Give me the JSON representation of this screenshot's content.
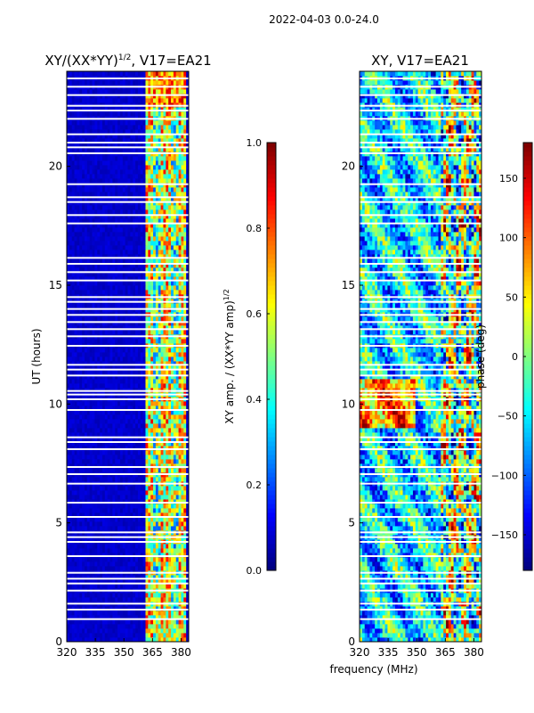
{
  "suptitle": "2022-04-03 0.0-24.0",
  "shared_xlabel": "frequency (MHz)",
  "chart_data": [
    {
      "type": "heatmap",
      "title": "XY/(XX*YY)",
      "title_sup": "1/2",
      "title_suffix": ", V17=EA21",
      "xlabel": "",
      "ylabel": "UT (hours)",
      "xlim": [
        320,
        384
      ],
      "ylim": [
        0,
        24
      ],
      "xticks": [
        320,
        335,
        350,
        365,
        380
      ],
      "yticks": [
        0,
        5,
        10,
        15,
        20
      ],
      "grid": false,
      "colormap": "jet",
      "colorbar": {
        "label": "XY amp. / (XX*YY amp)",
        "label_sup": "1/2",
        "range": [
          0.0,
          1.0
        ],
        "ticks": [
          "0.0",
          "0.2",
          "0.4",
          "0.6",
          "0.8",
          "1.0"
        ]
      },
      "background_value": 0.05,
      "bright_band_mhz": [
        361,
        383
      ],
      "gap_hours_utc": [
        0.95,
        1.35,
        1.6,
        2.15,
        2.45,
        2.65,
        2.9,
        3.6,
        4.2,
        4.4,
        4.6,
        5.25,
        5.85,
        6.65,
        7.05,
        7.35,
        8.1,
        8.4,
        8.6,
        9.75,
        10.2,
        10.4,
        10.55,
        11.2,
        11.45,
        11.65,
        12.45,
        12.85,
        13.15,
        13.45,
        13.75,
        14.0,
        14.3,
        14.5,
        15.2,
        15.55,
        15.9,
        16.15,
        17.6,
        17.95,
        18.5,
        18.7,
        19.25,
        20.55,
        20.8,
        21.0,
        21.35,
        22.0,
        22.35,
        22.55,
        23.0,
        23.35,
        23.7
      ]
    },
    {
      "type": "heatmap",
      "title": "XY, V17=EA21",
      "xlabel": "frequency (MHz)",
      "ylabel": "",
      "xlim": [
        320,
        384
      ],
      "ylim": [
        0,
        24
      ],
      "xticks": [
        320,
        335,
        350,
        365,
        380
      ],
      "yticks": [
        0,
        5,
        10,
        15,
        20
      ],
      "grid": false,
      "colormap": "jet",
      "colorbar": {
        "label": "phase (deg)",
        "range": [
          -180,
          180
        ],
        "ticks": [
          "−150",
          "−100",
          "−50",
          "0",
          "50",
          "100",
          "150"
        ],
        "tick_values": [
          -150,
          -100,
          -50,
          0,
          50,
          100,
          150
        ]
      },
      "gap_hours_utc": [
        0.95,
        1.35,
        1.6,
        2.15,
        2.45,
        2.65,
        2.9,
        3.6,
        4.2,
        4.4,
        4.6,
        5.25,
        5.85,
        6.65,
        7.05,
        7.35,
        8.1,
        8.4,
        8.6,
        9.75,
        10.2,
        10.4,
        10.55,
        11.2,
        11.45,
        11.65,
        12.45,
        12.85,
        13.15,
        13.45,
        13.75,
        14.0,
        14.3,
        14.5,
        15.2,
        15.55,
        15.9,
        16.15,
        17.6,
        17.95,
        18.5,
        18.7,
        19.25,
        20.55,
        20.8,
        21.0,
        21.35,
        22.0,
        22.35,
        22.55,
        23.0,
        23.35,
        23.7
      ]
    }
  ]
}
